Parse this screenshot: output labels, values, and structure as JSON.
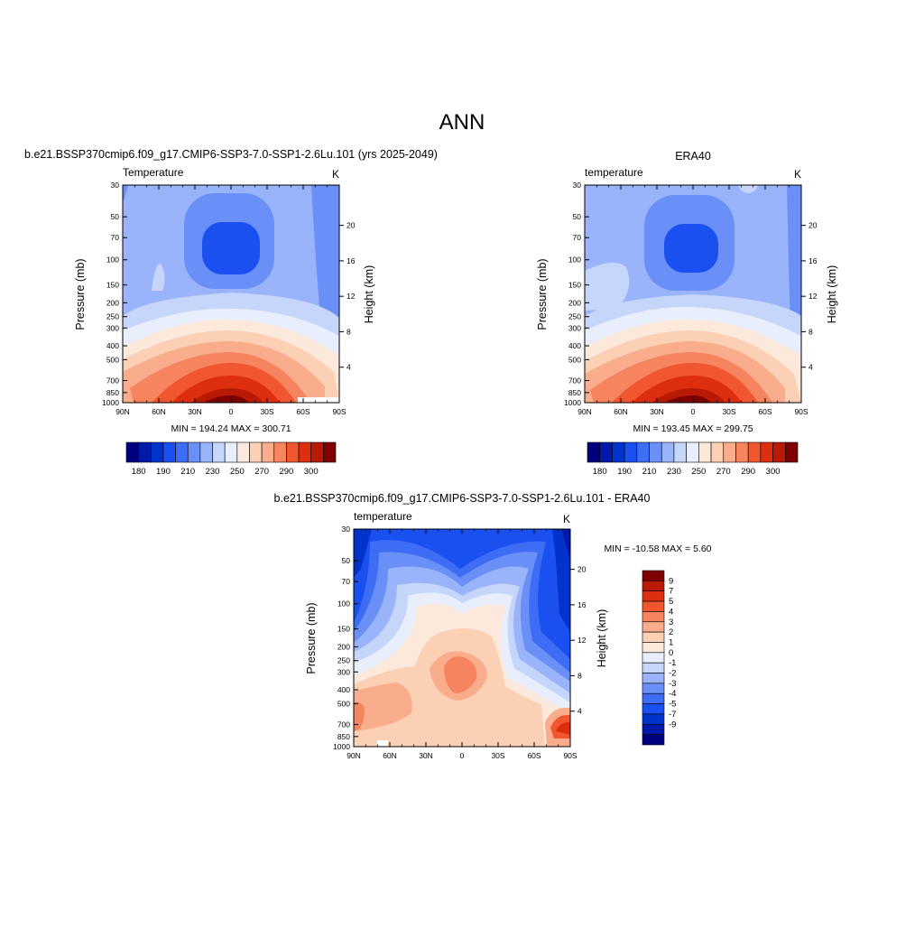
{
  "figure": {
    "title": "ANN"
  },
  "colors": {
    "abs_scale": [
      "#00007f",
      "#0019a8",
      "#0033cc",
      "#1a4ff0",
      "#3d6df5",
      "#6a90f7",
      "#99b4fb",
      "#c6d6fb",
      "#e8eefc",
      "#fde9dc",
      "#fcd0b5",
      "#f9ad8c",
      "#f6845f",
      "#f0562f",
      "#dd2f10",
      "#b91a05",
      "#7f0000"
    ],
    "diff_scale": [
      "#00007f",
      "#0019a8",
      "#0033cc",
      "#1a4ff0",
      "#3d6df5",
      "#6a90f7",
      "#99b4fb",
      "#c6d6fb",
      "#e8eefc",
      "#fde9dc",
      "#fcd0b5",
      "#f9ad8c",
      "#f6845f",
      "#f0562f",
      "#dd2f10",
      "#b91a05",
      "#7f0000"
    ]
  },
  "panels": [
    {
      "id": "model",
      "title": "b.e21.BSSP370cmip6.f09_g17.CMIP6-SSP3-7.0-SSP1-2.6Lu.101 (yrs 2025-2049)",
      "variable": "Temperature",
      "units": "K",
      "ylabel": "Pressure (mb)",
      "ylabel_right": "Height (km)",
      "stats": "MIN = 194.24  MAX = 300.71",
      "colorbar_labels": [
        "180",
        "190",
        "210",
        "230",
        "250",
        "270",
        "290",
        "300"
      ]
    },
    {
      "id": "obs",
      "title": "ERA40",
      "variable": "temperature",
      "units": "K",
      "ylabel": "Pressure (mb)",
      "ylabel_right": "Height (km)",
      "stats": "MIN = 193.45  MAX = 299.75",
      "colorbar_labels": [
        "180",
        "190",
        "210",
        "230",
        "250",
        "270",
        "290",
        "300"
      ]
    },
    {
      "id": "diff",
      "title": "b.e21.BSSP370cmip6.f09_g17.CMIP6-SSP3-7.0-SSP1-2.6Lu.101 - ERA40",
      "variable": "temperature",
      "units": "K",
      "ylabel": "Pressure (mb)",
      "ylabel_right": "Height (km)",
      "stats": "MIN = -10.58  MAX =   5.60",
      "colorbar_labels": [
        "9",
        "7",
        "5",
        "4",
        "3",
        "2",
        "1",
        "0",
        "-1",
        "-2",
        "-3",
        "-4",
        "-5",
        "-7",
        "-9"
      ]
    }
  ],
  "chart_data": [
    {
      "type": "heatmap",
      "title": "b.e21.BSSP370cmip6.f09_g17.CMIP6-SSP3-7.0-SSP1-2.6Lu.101 (yrs 2025-2049)",
      "ylabel": "Pressure (mb)",
      "ylabel_right": "Height (km)",
      "x_ticks": [
        "90N",
        "60N",
        "30N",
        "0",
        "30S",
        "60S",
        "90S"
      ],
      "y_ticks": [
        "30",
        "50",
        "70",
        "100",
        "150",
        "200",
        "250",
        "300",
        "400",
        "500",
        "700",
        "850",
        "1000"
      ],
      "y_right_ticks": [
        "20",
        "16",
        "12",
        "8",
        "4"
      ],
      "ylim": [
        1000,
        30
      ],
      "y_scale": "log",
      "colorbar_levels": [
        180,
        185,
        190,
        200,
        210,
        220,
        230,
        240,
        250,
        260,
        270,
        280,
        290,
        295,
        300
      ],
      "min": 194.24,
      "max": 300.71
    },
    {
      "type": "heatmap",
      "title": "ERA40",
      "ylabel": "Pressure (mb)",
      "ylabel_right": "Height (km)",
      "x_ticks": [
        "90N",
        "60N",
        "30N",
        "0",
        "30S",
        "60S",
        "90S"
      ],
      "y_ticks": [
        "30",
        "50",
        "70",
        "100",
        "150",
        "200",
        "250",
        "300",
        "400",
        "500",
        "700",
        "850",
        "1000"
      ],
      "y_right_ticks": [
        "20",
        "16",
        "12",
        "8",
        "4"
      ],
      "ylim": [
        1000,
        30
      ],
      "y_scale": "log",
      "colorbar_levels": [
        180,
        185,
        190,
        200,
        210,
        220,
        230,
        240,
        250,
        260,
        270,
        280,
        290,
        295,
        300
      ],
      "min": 193.45,
      "max": 299.75
    },
    {
      "type": "heatmap",
      "title": "b.e21.BSSP370cmip6.f09_g17.CMIP6-SSP3-7.0-SSP1-2.6Lu.101 - ERA40",
      "ylabel": "Pressure (mb)",
      "ylabel_right": "Height (km)",
      "x_ticks": [
        "90N",
        "60N",
        "30N",
        "0",
        "30S",
        "60S",
        "90S"
      ],
      "y_ticks": [
        "30",
        "50",
        "70",
        "100",
        "150",
        "200",
        "250",
        "300",
        "400",
        "500",
        "700",
        "850",
        "1000"
      ],
      "y_right_ticks": [
        "20",
        "16",
        "12",
        "8",
        "4"
      ],
      "ylim": [
        1000,
        30
      ],
      "y_scale": "log",
      "colorbar_levels": [
        -9,
        -7,
        -5,
        -4,
        -3,
        -2,
        -1,
        0,
        1,
        2,
        3,
        4,
        5,
        7,
        9
      ],
      "min": -10.58,
      "max": 5.6
    }
  ]
}
